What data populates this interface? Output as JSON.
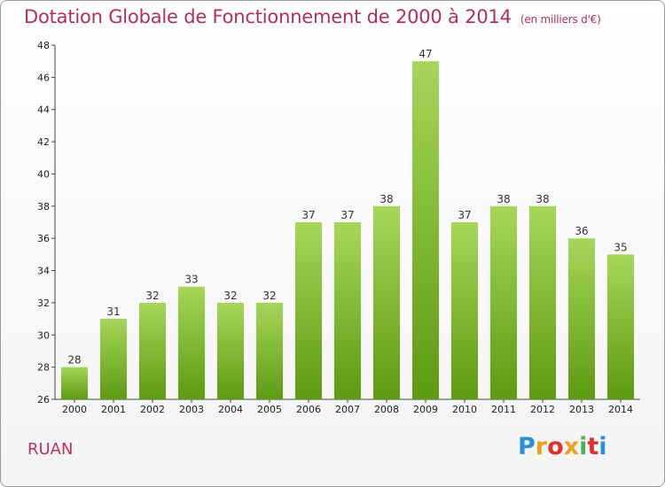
{
  "title": "Dotation Globale de Fonctionnement de 2000 à 2014",
  "unit": "(en milliers d'€)",
  "commune": "RUAN",
  "logo": {
    "letters": [
      "P",
      "r",
      "o",
      "x",
      "i",
      "t",
      "i"
    ],
    "colors": [
      "#2a8fd6",
      "#f0a020",
      "#e03030",
      "#f0a020",
      "#4caf50",
      "#e03030",
      "#2a8fd6"
    ]
  },
  "colors": {
    "bar_light": "#a6d65a",
    "bar_dark": "#5e9a12",
    "title": "#b0305a"
  },
  "chart_data": {
    "type": "bar",
    "title": "Dotation Globale de Fonctionnement de 2000 à 2014",
    "subtitle": "(en milliers d'€)",
    "categories": [
      "2000",
      "2001",
      "2002",
      "2003",
      "2004",
      "2005",
      "2006",
      "2007",
      "2008",
      "2009",
      "2010",
      "2011",
      "2012",
      "2013",
      "2014"
    ],
    "values": [
      28,
      31,
      32,
      33,
      32,
      32,
      37,
      37,
      38,
      47,
      37,
      38,
      38,
      36,
      35
    ],
    "ylim": [
      26,
      48
    ],
    "yticks": [
      26,
      28,
      30,
      32,
      34,
      36,
      38,
      40,
      42,
      44,
      46,
      48
    ],
    "grid": false
  }
}
